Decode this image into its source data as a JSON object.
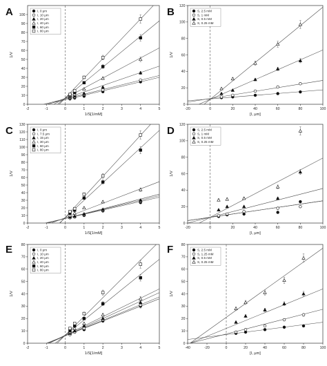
{
  "chart_data": [
    {
      "panel": "A",
      "type": "scatter",
      "xlabel": "1/S[1/mM]",
      "ylabel": "1/V",
      "xlim": [
        -2,
        5
      ],
      "ylim": [
        0,
        110
      ],
      "xticks": [
        -2,
        -1,
        0,
        1,
        2,
        3,
        4,
        5
      ],
      "yticks": [
        0,
        10,
        20,
        30,
        40,
        50,
        60,
        70,
        80,
        90,
        100
      ],
      "legend_position": "top-left",
      "series": [
        {
          "name": "I, 0 μm",
          "marker": "filled-circle",
          "x": [
            0.25,
            0.5,
            1,
            2,
            4
          ],
          "y": [
            6,
            7,
            9,
            14,
            25
          ],
          "line": {
            "slope": 5.0,
            "intercept": 5.0
          }
        },
        {
          "name": "I, 10 μm",
          "marker": "open-circle",
          "x": [
            0.25,
            0.5,
            1,
            2,
            4
          ],
          "y": [
            7,
            8,
            11,
            16,
            27
          ],
          "line": {
            "slope": 5.2,
            "intercept": 6.0
          }
        },
        {
          "name": "I, 20 μm",
          "marker": "filled-triangle",
          "x": [
            0.25,
            0.5,
            1,
            2,
            4
          ],
          "y": [
            8,
            9,
            12,
            19,
            35
          ],
          "line": {
            "slope": 7.2,
            "intercept": 6.5
          }
        },
        {
          "name": "I, 40 μm",
          "marker": "open-triangle",
          "x": [
            0.25,
            0.5,
            1,
            2,
            4
          ],
          "y": [
            9,
            11,
            17,
            29,
            50
          ],
          "line": {
            "slope": 11.2,
            "intercept": 6.8
          }
        },
        {
          "name": "I, 60 μm",
          "marker": "filled-square",
          "x": [
            0.25,
            0.5,
            1,
            2,
            4
          ],
          "y": [
            10,
            13,
            24,
            42,
            74
          ],
          "line": {
            "slope": 17.2,
            "intercept": 7.0
          }
        },
        {
          "name": "I, 80 μm",
          "marker": "open-square",
          "x": [
            0.25,
            0.5,
            1,
            2,
            4
          ],
          "y": [
            11,
            15,
            30,
            52,
            95
          ],
          "line": {
            "slope": 22.0,
            "intercept": 7.0
          }
        }
      ]
    },
    {
      "panel": "B",
      "type": "scatter",
      "xlabel": "[I, μm]",
      "ylabel": "1/V",
      "xlim": [
        -20,
        100
      ],
      "ylim": [
        0,
        120
      ],
      "xticks": [
        -20,
        0,
        20,
        40,
        60,
        80,
        100
      ],
      "yticks": [
        0,
        20,
        40,
        60,
        80,
        100,
        120
      ],
      "legend_position": "top-left",
      "series": [
        {
          "name": "S, 2.5 mM",
          "marker": "filled-circle",
          "x": [
            10,
            20,
            40,
            60,
            80
          ],
          "y": [
            8,
            9,
            11,
            13,
            15
          ],
          "line": {
            "slope": 0.11,
            "intercept": 6.5
          }
        },
        {
          "name": "S, 1 mM",
          "marker": "open-circle",
          "x": [
            10,
            20,
            40,
            60,
            80
          ],
          "y": [
            9,
            11,
            16,
            21,
            25
          ],
          "line": {
            "slope": 0.22,
            "intercept": 7.0
          }
        },
        {
          "name": "S, 0.5 mM",
          "marker": "filled-triangle",
          "x": [
            10,
            20,
            40,
            60,
            80
          ],
          "y": [
            13,
            17,
            30,
            43,
            53
          ],
          "line": {
            "slope": 0.6,
            "intercept": 6.0
          }
        },
        {
          "name": "S, 0.25 mM",
          "marker": "open-triangle",
          "x": [
            10,
            20,
            40,
            60,
            80
          ],
          "y": [
            19,
            31,
            50,
            73,
            97
          ],
          "line": {
            "slope": 1.12,
            "intercept": 6.0
          }
        }
      ]
    },
    {
      "panel": "C",
      "type": "scatter",
      "xlabel": "1/S[1/mM]",
      "ylabel": "1/V",
      "xlim": [
        -2,
        5
      ],
      "ylim": [
        0,
        130
      ],
      "xticks": [
        -2,
        -1,
        0,
        1,
        2,
        3,
        4,
        5
      ],
      "yticks": [
        0,
        10,
        20,
        30,
        40,
        50,
        60,
        70,
        80,
        90,
        100,
        110,
        120,
        130
      ],
      "legend_position": "top-left",
      "series": [
        {
          "name": "I, 0 μm",
          "marker": "filled-circle",
          "x": [
            0.25,
            0.5,
            1,
            2,
            4
          ],
          "y": [
            7,
            8,
            10,
            16,
            27
          ],
          "line": {
            "slope": 5.6,
            "intercept": 6.0
          }
        },
        {
          "name": "I, 7.5 μm",
          "marker": "open-circle",
          "x": [
            0.25,
            0.5,
            1,
            2,
            4
          ],
          "y": [
            7,
            8,
            11,
            17,
            29
          ],
          "line": {
            "slope": 6.0,
            "intercept": 6.0
          }
        },
        {
          "name": "I, 15 μm",
          "marker": "filled-triangle",
          "x": [
            0.25,
            0.5,
            1,
            2,
            4
          ],
          "y": [
            8,
            9,
            12,
            18,
            30
          ],
          "line": {
            "slope": 6.4,
            "intercept": 6.0
          }
        },
        {
          "name": "I, 30 μm",
          "marker": "open-triangle",
          "x": [
            0.25,
            0.5,
            1,
            2,
            4
          ],
          "y": [
            10,
            13,
            20,
            28,
            44
          ],
          "line": {
            "slope": 9.5,
            "intercept": 7.0
          }
        },
        {
          "name": "I, 60 μm",
          "marker": "filled-square",
          "x": [
            0.25,
            0.5,
            1,
            2,
            4
          ],
          "y": [
            13,
            17,
            33,
            54,
            96
          ],
          "line": {
            "slope": 23.0,
            "intercept": 7.0
          }
        },
        {
          "name": "I, 80 μm",
          "marker": "open-square",
          "x": [
            0.25,
            0.5,
            1,
            2,
            4
          ],
          "y": [
            15,
            19,
            38,
            62,
            116
          ],
          "line": {
            "slope": 27.0,
            "intercept": 7.5
          }
        }
      ]
    },
    {
      "panel": "D",
      "type": "scatter",
      "xlabel": "[I, μm]",
      "ylabel": "1/V",
      "xlim": [
        -20,
        100
      ],
      "ylim": [
        0,
        120
      ],
      "xticks": [
        -20,
        0,
        20,
        40,
        60,
        80,
        100
      ],
      "yticks": [
        0,
        20,
        40,
        60,
        80,
        100,
        120
      ],
      "legend_position": "top-left",
      "series": [
        {
          "name": "S, 2.5 mM",
          "marker": "filled-circle",
          "x": [
            7.5,
            15,
            30,
            60,
            80
          ],
          "y": [
            8,
            10,
            11,
            13,
            26
          ],
          "line": {
            "slope": 0.2,
            "intercept": 7.0
          }
        },
        {
          "name": "S, 1 mM",
          "marker": "open-circle",
          "x": [
            7.5,
            15,
            30,
            60,
            80
          ],
          "y": [
            9,
            11,
            14,
            18,
            20
          ],
          "line": {
            "slope": 0.2,
            "intercept": 7.0
          }
        },
        {
          "name": "S, 0.5 mM",
          "marker": "filled-triangle",
          "x": [
            7.5,
            15,
            30,
            60,
            80
          ],
          "y": [
            16,
            20,
            20,
            30,
            62
          ],
          "line": {
            "slope": 0.35,
            "intercept": 7.0
          }
        },
        {
          "name": "S, 0.25 mM",
          "marker": "open-triangle",
          "x": [
            7.5,
            15,
            30,
            60,
            80
          ],
          "y": [
            28,
            29,
            30,
            44,
            112
          ],
          "line": {
            "slope": 0.72,
            "intercept": 7.0
          }
        }
      ]
    },
    {
      "panel": "E",
      "type": "scatter",
      "xlabel": "1/S[1/mM]",
      "ylabel": "1/V",
      "xlim": [
        -2,
        5
      ],
      "ylim": [
        0,
        80
      ],
      "xticks": [
        -2,
        -1,
        0,
        1,
        2,
        3,
        4,
        5
      ],
      "yticks": [
        0,
        10,
        20,
        30,
        40,
        50,
        60,
        70,
        80
      ],
      "legend_position": "top-left",
      "series": [
        {
          "name": "I, 0 μm",
          "marker": "filled-circle",
          "x": [
            0.25,
            0.5,
            1,
            2,
            4
          ],
          "y": [
            7,
            9,
            11,
            18,
            30
          ],
          "line": {
            "slope": 6.0,
            "intercept": 6.0
          }
        },
        {
          "name": "I, 10 μm",
          "marker": "open-circle",
          "x": [
            0.25,
            0.5,
            1,
            2,
            4
          ],
          "y": [
            7,
            9,
            12,
            19,
            31
          ],
          "line": {
            "slope": 6.3,
            "intercept": 6.0
          }
        },
        {
          "name": "I, 20 μm",
          "marker": "filled-triangle",
          "x": [
            0.25,
            0.5,
            1,
            2,
            4
          ],
          "y": [
            8,
            10,
            14,
            20,
            33
          ],
          "line": {
            "slope": 7.0,
            "intercept": 6.0
          }
        },
        {
          "name": "I, 40 μm",
          "marker": "open-triangle",
          "x": [
            0.25,
            0.5,
            1,
            2,
            4
          ],
          "y": [
            9,
            12,
            16,
            23,
            36
          ],
          "line": {
            "slope": 7.5,
            "intercept": 6.5
          }
        },
        {
          "name": "I, 60 μm",
          "marker": "filled-square",
          "x": [
            0.25,
            0.5,
            1,
            2,
            4
          ],
          "y": [
            10,
            14,
            20,
            32,
            53
          ],
          "line": {
            "slope": 12.3,
            "intercept": 6.5
          }
        },
        {
          "name": "I, 80 μm",
          "marker": "open-square",
          "x": [
            0.25,
            0.5,
            1,
            2,
            4
          ],
          "y": [
            12,
            16,
            24,
            41,
            64
          ],
          "line": {
            "slope": 15.2,
            "intercept": 6.5
          }
        }
      ]
    },
    {
      "panel": "F",
      "type": "scatter",
      "xlabel": "[I, μm]",
      "ylabel": "1/V",
      "xlim": [
        -40,
        100
      ],
      "ylim": [
        0,
        80
      ],
      "xticks": [
        -40,
        -20,
        0,
        20,
        40,
        60,
        80,
        100
      ],
      "yticks": [
        0,
        10,
        20,
        30,
        40,
        50,
        60,
        70,
        80
      ],
      "legend_position": "top-left",
      "series": [
        {
          "name": "S, 2.5 mM",
          "marker": "filled-circle",
          "x": [
            10,
            20,
            40,
            60,
            80
          ],
          "y": [
            8,
            9,
            11,
            13,
            14
          ],
          "line": {
            "slope": 0.1,
            "intercept": 7.0
          }
        },
        {
          "name": "S, 1.25 mM",
          "marker": "open-circle",
          "x": [
            10,
            20,
            40,
            60,
            80
          ],
          "y": [
            9,
            11,
            14,
            19,
            23
          ],
          "line": {
            "slope": 0.2,
            "intercept": 7.5
          }
        },
        {
          "name": "S, 0.5 mM",
          "marker": "filled-triangle",
          "x": [
            10,
            20,
            40,
            60,
            80
          ],
          "y": [
            17,
            22,
            27,
            32,
            40
          ],
          "line": {
            "slope": 0.32,
            "intercept": 12.0
          }
        },
        {
          "name": "S, 0.25 mM",
          "marker": "open-triangle",
          "x": [
            10,
            20,
            40,
            60,
            80
          ],
          "y": [
            28,
            33,
            41,
            51,
            69
          ],
          "line": {
            "slope": 0.56,
            "intercept": 21.0
          }
        }
      ]
    }
  ]
}
